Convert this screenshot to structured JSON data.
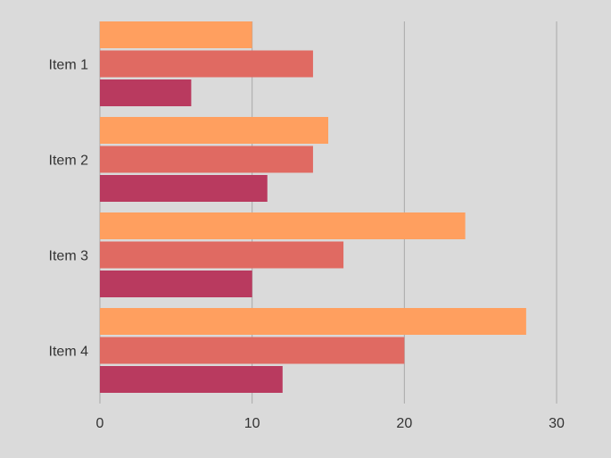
{
  "chart_data": {
    "type": "bar",
    "orientation": "horizontal",
    "title": "",
    "xlabel": "",
    "ylabel": "",
    "categories": [
      "Item 1",
      "Item 2",
      "Item 3",
      "Item 4"
    ],
    "series": [
      {
        "color": "#ff9f5f",
        "values": [
          10,
          15,
          24,
          28
        ]
      },
      {
        "color": "#e06a62",
        "values": [
          14,
          14,
          16,
          20
        ]
      },
      {
        "color": "#b93a5f",
        "values": [
          6,
          11,
          10,
          12
        ]
      }
    ],
    "xlim": [
      0,
      30
    ],
    "x_ticks": [
      0,
      10,
      20,
      30
    ],
    "grid": true,
    "legend": "none"
  }
}
